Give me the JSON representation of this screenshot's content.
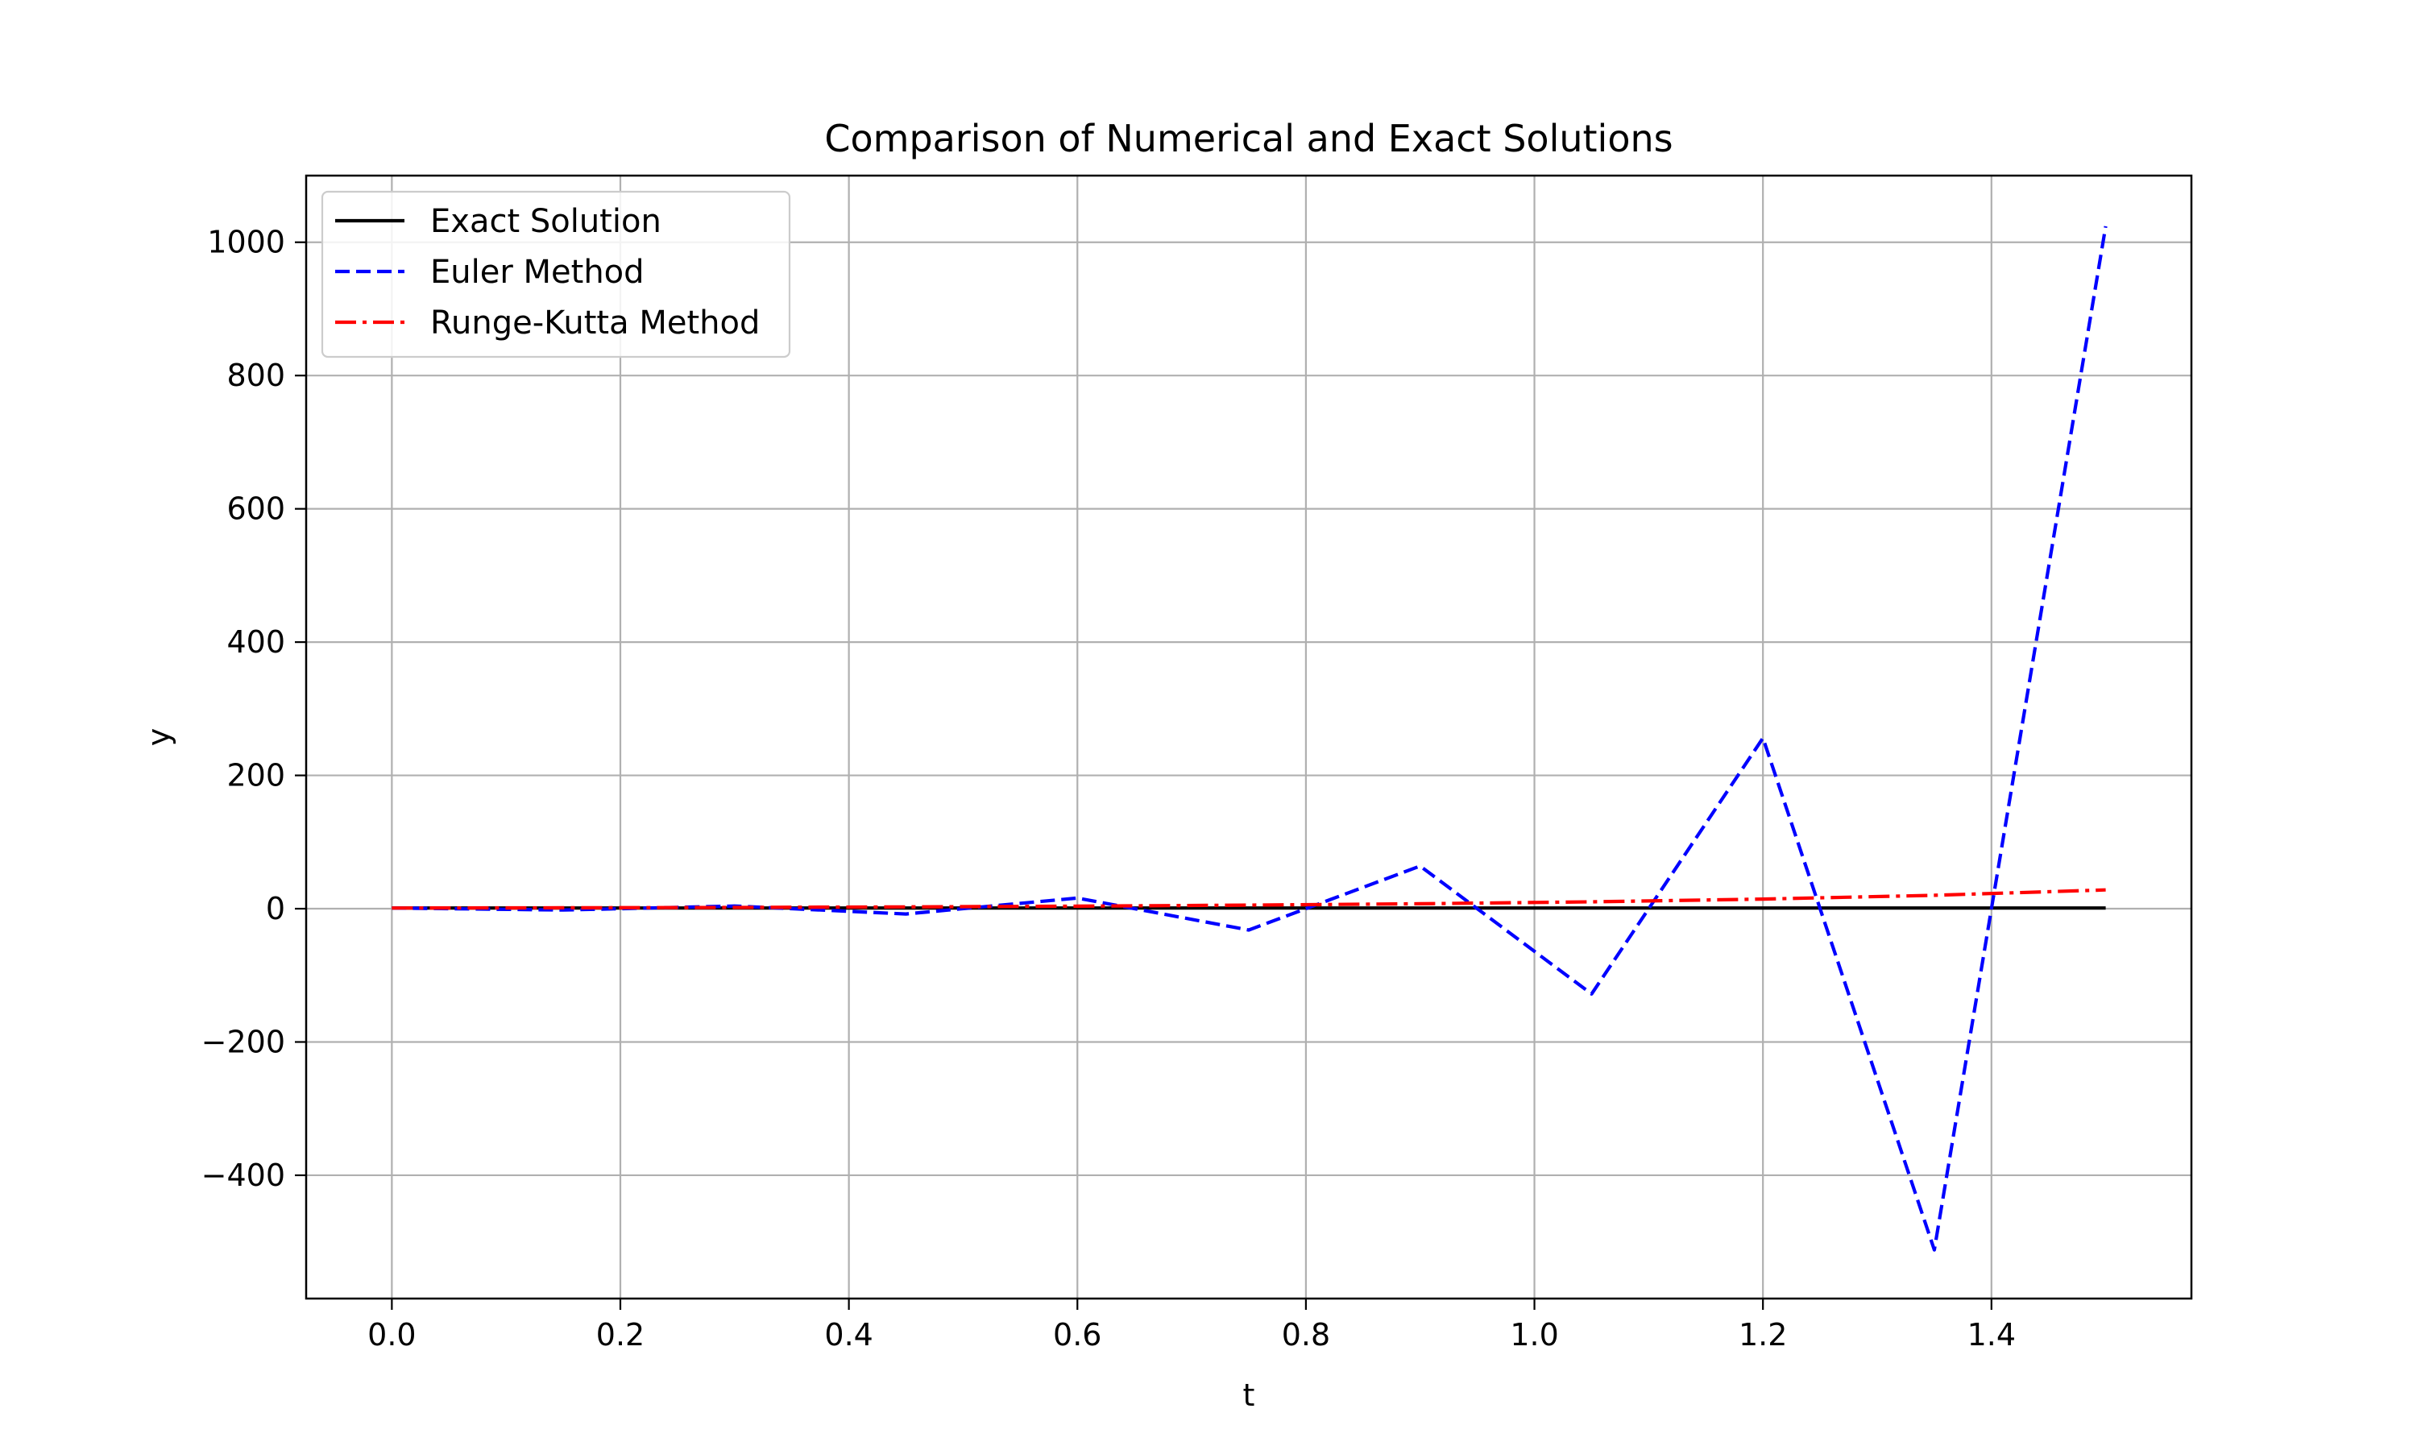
{
  "chart_data": {
    "type": "line",
    "title": "Comparison of Numerical and Exact Solutions",
    "xlabel": "t",
    "ylabel": "y",
    "xlim": [
      -0.075,
      1.575
    ],
    "ylim": [
      -585,
      1100
    ],
    "xticks": [
      0.0,
      0.2,
      0.4,
      0.6,
      0.8,
      1.0,
      1.2,
      1.4
    ],
    "xtick_labels": [
      "0.0",
      "0.2",
      "0.4",
      "0.6",
      "0.8",
      "1.0",
      "1.2",
      "1.4"
    ],
    "yticks": [
      -400,
      -200,
      0,
      200,
      400,
      600,
      800,
      1000
    ],
    "ytick_labels": [
      "−400",
      "−200",
      "0",
      "200",
      "400",
      "600",
      "800",
      "1000"
    ],
    "grid": true,
    "legend_position": "top-left",
    "series": [
      {
        "name": "Exact Solution",
        "color": "#000000",
        "style": "solid",
        "x": [
          0.0,
          0.15,
          0.3,
          0.45,
          0.6,
          0.75,
          0.9,
          1.05,
          1.2,
          1.35,
          1.5
        ],
        "y": [
          1,
          1,
          1,
          1,
          1,
          1,
          1,
          1,
          1,
          1,
          1
        ]
      },
      {
        "name": "Euler Method",
        "color": "#0000ff",
        "style": "dashed",
        "x": [
          0.0,
          0.15,
          0.3,
          0.45,
          0.6,
          0.75,
          0.9,
          1.05,
          1.2,
          1.35,
          1.5
        ],
        "y": [
          1,
          -2,
          4,
          -8,
          16,
          -32,
          64,
          -128,
          256,
          -512,
          1024
        ]
      },
      {
        "name": "Runge-Kutta Method",
        "color": "#ff0000",
        "style": "dashdot",
        "x": [
          0.0,
          0.15,
          0.3,
          0.45,
          0.6,
          0.75,
          0.9,
          1.05,
          1.2,
          1.35,
          1.5
        ],
        "y": [
          1,
          1.4,
          1.9,
          2.7,
          3.8,
          5.3,
          7.4,
          10.3,
          14.4,
          20.1,
          28.2
        ]
      }
    ]
  }
}
